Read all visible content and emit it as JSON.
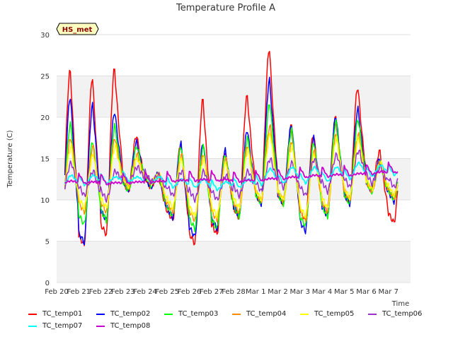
{
  "chart_data": {
    "type": "line",
    "title": "Temperature Profile A",
    "xlabel": "Time",
    "ylabel": "Temperature (C)",
    "ylim": [
      0,
      30
    ],
    "xlim": [
      "2024-02-20",
      "2024-03-07"
    ],
    "yticks": [
      0,
      5,
      10,
      15,
      20,
      25,
      30
    ],
    "xticks": [
      "Feb 20",
      "Feb 21",
      "Feb 22",
      "Feb 23",
      "Feb 24",
      "Feb 25",
      "Feb 26",
      "Feb 27",
      "Feb 28",
      "Mar 1",
      "Mar 2",
      "Mar 3",
      "Mar 4",
      "Mar 5",
      "Mar 6",
      "Mar 7"
    ],
    "grid": "horizontal alternating bands",
    "legend_position": "bottom",
    "annotation": "HS_met",
    "x": [
      "2024-02-20",
      "2024-02-21",
      "2024-02-22",
      "2024-02-23",
      "2024-02-24",
      "2024-02-25",
      "2024-02-26",
      "2024-02-27",
      "2024-02-28",
      "2024-02-29",
      "2024-03-01",
      "2024-03-02",
      "2024-03-03",
      "2024-03-04",
      "2024-03-05",
      "2024-03-06"
    ],
    "series": [
      {
        "name": "TC_temp01",
        "color": "#ff0000",
        "min": [
          7.5,
          4.5,
          5.8,
          11.0,
          11.5,
          7.5,
          4.7,
          5.8,
          7.8,
          9.5,
          9.5,
          7.5,
          8.5,
          9.5,
          11.0,
          7.2
        ],
        "max": [
          25.7,
          24.9,
          25.9,
          17.8,
          13.0,
          16.8,
          22.2,
          15.9,
          22.6,
          28.4,
          19.0,
          18.0,
          20.0,
          23.7,
          15.9,
          15.0
        ]
      },
      {
        "name": "TC_temp02",
        "color": "#0000ff",
        "min": [
          8.0,
          4.8,
          7.5,
          11.2,
          11.5,
          7.8,
          5.5,
          6.5,
          8.0,
          9.5,
          9.5,
          6.2,
          8.0,
          9.5,
          11.0,
          9.8
        ],
        "max": [
          22.5,
          21.5,
          20.7,
          17.0,
          13.2,
          16.8,
          17.0,
          16.0,
          18.5,
          24.5,
          19.2,
          17.5,
          20.2,
          21.0,
          15.0,
          14.5
        ]
      },
      {
        "name": "TC_temp03",
        "color": "#00ff00",
        "min": [
          8.5,
          7.0,
          7.5,
          11.0,
          11.8,
          8.0,
          6.5,
          6.5,
          8.0,
          9.5,
          9.5,
          6.8,
          8.0,
          9.5,
          11.0,
          10.0
        ],
        "max": [
          19.2,
          17.2,
          19.0,
          16.5,
          13.0,
          16.5,
          16.5,
          15.5,
          17.5,
          21.8,
          18.5,
          17.0,
          19.5,
          19.8,
          14.5,
          14.0
        ]
      },
      {
        "name": "TC_temp04",
        "color": "#ff8c00",
        "min": [
          9.0,
          8.5,
          8.5,
          11.5,
          12.0,
          8.5,
          7.5,
          7.5,
          8.5,
          9.8,
          9.8,
          7.5,
          8.5,
          10.0,
          11.0,
          10.2
        ],
        "max": [
          17.5,
          16.5,
          17.5,
          15.5,
          13.0,
          15.5,
          15.5,
          15.0,
          16.5,
          19.0,
          17.0,
          16.0,
          18.0,
          18.0,
          14.5,
          14.0
        ]
      },
      {
        "name": "TC_temp05",
        "color": "#ffff00",
        "min": [
          9.5,
          9.0,
          9.0,
          11.5,
          12.0,
          9.0,
          8.0,
          8.0,
          9.0,
          10.0,
          10.0,
          8.0,
          9.0,
          10.2,
          11.2,
          10.5
        ],
        "max": [
          16.5,
          15.5,
          16.5,
          15.0,
          13.0,
          15.0,
          15.0,
          14.5,
          16.0,
          18.0,
          16.5,
          15.5,
          17.5,
          17.5,
          14.5,
          14.0
        ]
      },
      {
        "name": "TC_temp06",
        "color": "#9a32cd",
        "min": [
          10.5,
          10.5,
          10.0,
          12.0,
          12.2,
          10.5,
          10.0,
          10.0,
          10.5,
          11.0,
          11.5,
          10.5,
          11.0,
          11.5,
          12.0,
          11.5
        ],
        "max": [
          14.5,
          13.5,
          13.5,
          14.0,
          13.0,
          13.5,
          13.5,
          13.0,
          13.5,
          15.0,
          14.5,
          15.0,
          15.5,
          16.0,
          14.0,
          13.5
        ]
      },
      {
        "name": "TC_temp07",
        "color": "#00ffff",
        "min": [
          11.5,
          11.8,
          12.0,
          12.2,
          12.0,
          11.5,
          11.5,
          11.2,
          11.5,
          11.8,
          12.0,
          12.0,
          12.2,
          12.5,
          12.8,
          13.0
        ],
        "max": [
          13.0,
          13.0,
          12.8,
          12.8,
          12.8,
          12.5,
          12.5,
          12.2,
          12.5,
          13.8,
          14.0,
          14.0,
          14.0,
          14.5,
          14.2,
          13.8
        ]
      },
      {
        "name": "TC_temp08",
        "color": "#cc00cc",
        "min": [
          12.0,
          12.0,
          11.9,
          12.0,
          12.1,
          12.2,
          12.3,
          12.3,
          12.2,
          12.3,
          12.5,
          12.7,
          12.8,
          12.9,
          13.1,
          13.3
        ],
        "max": [
          12.3,
          12.2,
          12.1,
          12.2,
          12.3,
          12.4,
          12.5,
          12.5,
          12.4,
          12.6,
          12.8,
          13.0,
          13.1,
          13.2,
          13.4,
          13.5
        ]
      }
    ]
  }
}
